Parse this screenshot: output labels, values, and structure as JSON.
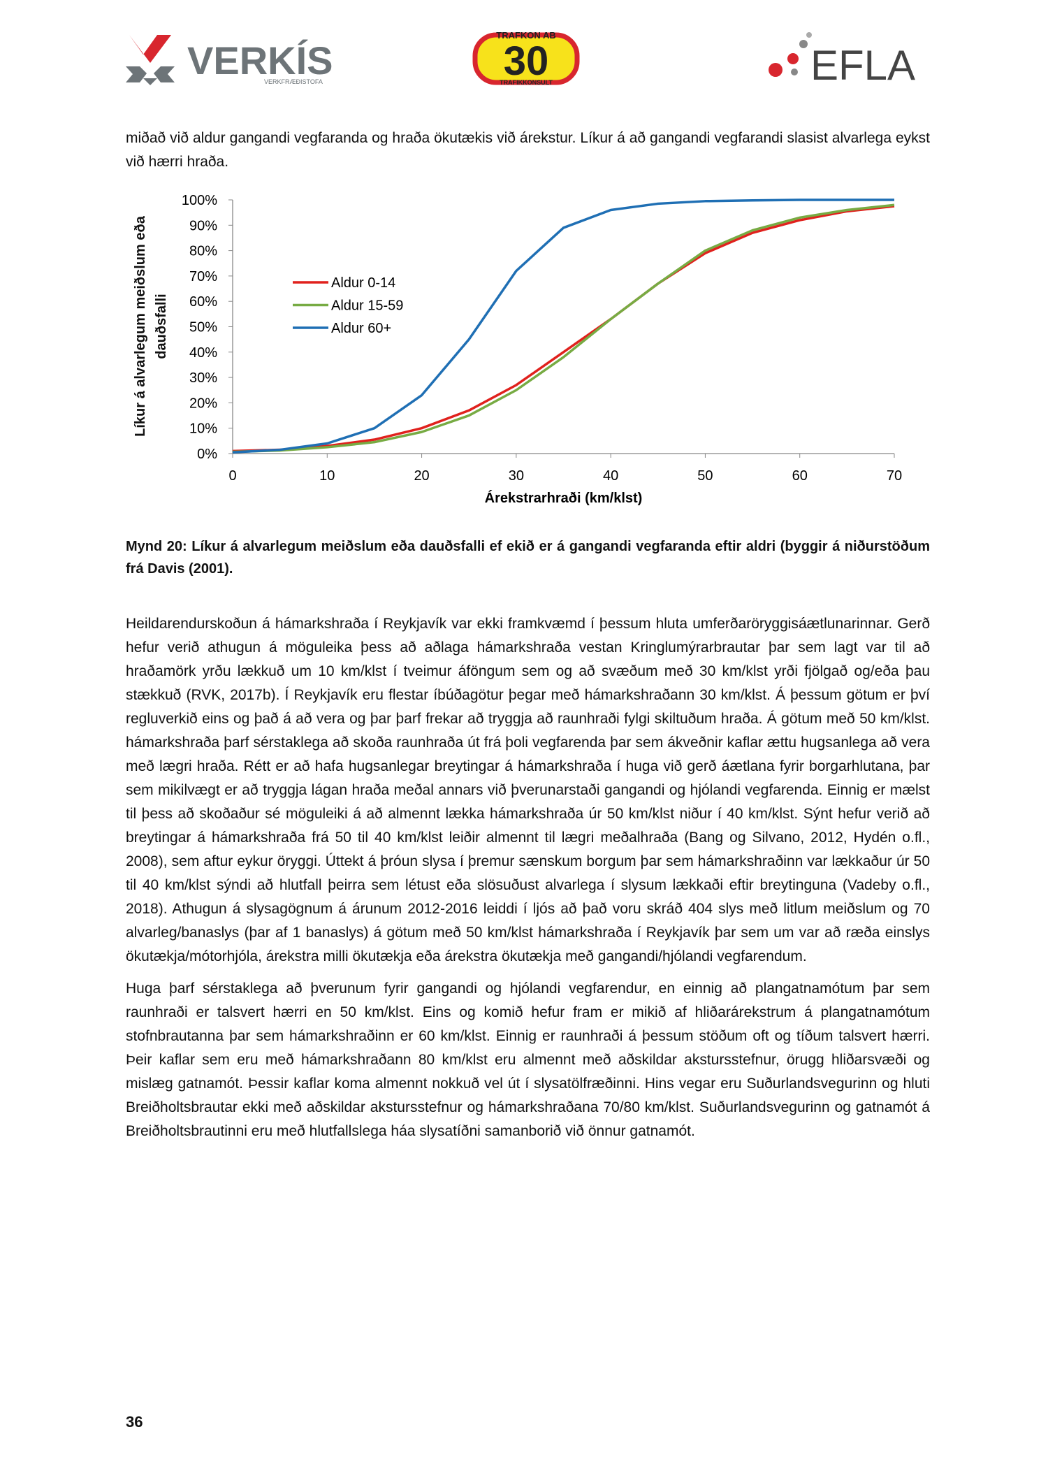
{
  "header": {
    "verkis": "VERKÍS",
    "verkis_sub": "VERKFRÆÐISTOFA",
    "trafkon_top": "TRAFKON AB",
    "trafkon_num": "30",
    "trafkon_bottom": "TRAFIKKONSULT",
    "efla": "EFLA"
  },
  "intro": "miðað við aldur gangandi vegfaranda og hraða ökutækis við árekstur. Líkur á að gangandi vegfarandi slasist alvarlega eykst við hærri hraða.",
  "chart_data": {
    "type": "line",
    "x_label": "Árekstrarhraði (km/klst)",
    "y_label": "Líkur á alvarlegum meiðslum eða dauðsfalli",
    "x": [
      0,
      5,
      10,
      15,
      20,
      25,
      30,
      35,
      40,
      45,
      50,
      55,
      60,
      65,
      70
    ],
    "series": [
      {
        "name": "Aldur 0-14",
        "color": "#e0211d",
        "values": [
          1,
          1.5,
          3,
          5.5,
          10,
          17,
          27,
          40,
          53,
          67,
          79,
          87,
          92,
          95.5,
          97.5
        ]
      },
      {
        "name": "Aldur 15-59",
        "color": "#77ab43",
        "values": [
          0.7,
          1.2,
          2.5,
          4.5,
          8.5,
          15,
          25,
          38,
          53,
          67,
          80,
          88,
          93,
          96,
          98
        ]
      },
      {
        "name": "Aldur 60+",
        "color": "#1f6fb4",
        "values": [
          0.5,
          1.5,
          4,
          10,
          23,
          45,
          72,
          89,
          96,
          98.5,
          99.5,
          99.8,
          100,
          100,
          100
        ]
      }
    ],
    "xlim": [
      0,
      70
    ],
    "xticks": [
      0,
      10,
      20,
      30,
      40,
      50,
      60,
      70
    ],
    "ylim": [
      0,
      100
    ],
    "yticks": [
      {
        "value": 0,
        "label": "0%"
      },
      {
        "value": 10,
        "label": "10%"
      },
      {
        "value": 20,
        "label": "20%"
      },
      {
        "value": 30,
        "label": "30%"
      },
      {
        "value": 40,
        "label": "40%"
      },
      {
        "value": 50,
        "label": "50%"
      },
      {
        "value": 60,
        "label": "60%"
      },
      {
        "value": 70,
        "label": "70%"
      },
      {
        "value": 80,
        "label": "80%"
      },
      {
        "value": 90,
        "label": "90%"
      },
      {
        "value": 100,
        "label": "100%"
      }
    ],
    "grid": false
  },
  "caption": "Mynd 20: Líkur á alvarlegum meiðslum eða dauðsfalli ef ekið er á gangandi vegfaranda eftir aldri (byggir á niðurstöðum frá Davis (2001).",
  "paragraphs": [
    "Heildarendurskoðun á hámarkshraða í Reykjavík var ekki framkvæmd í þessum hluta umferðaröryggisáætlunarinnar. Gerð hefur verið athugun á möguleika þess að aðlaga hámarkshraða vestan Kringlumýrarbrautar þar sem lagt var til að hraðamörk yrðu lækkuð um 10 km/klst í tveimur áföngum sem og að svæðum með 30 km/klst yrði fjölgað og/eða þau stækkuð (RVK, 2017b). Í Reykjavík eru flestar íbúðagötur þegar með hámarkshraðann 30 km/klst. Á þessum götum er því regluverkið eins og það á að vera og þar þarf frekar að tryggja að raunhraði fylgi skiltuðum hraða. Á götum með 50 km/klst. hámarkshraða þarf sérstaklega að skoða raunhraða út frá þoli vegfarenda þar sem ákveðnir kaflar ættu hugsanlega að vera með lægri hraða. Rétt er að hafa hugsanlegar breytingar á hámarkshraða í huga við gerð áætlana fyrir borgarhlutana, þar sem mikilvægt er að tryggja lágan hraða meðal annars við þverunarstaði gangandi og hjólandi vegfarenda. Einnig er mælst til þess að skoðaður sé möguleiki á að almennt lækka hámarkshraða úr 50 km/klst niður í 40 km/klst. Sýnt hefur verið að breytingar á hámarkshraða frá 50 til 40 km/klst leiðir almennt til lægri meðalhraða (Bang og Silvano, 2012, Hydén o.fl., 2008), sem aftur eykur öryggi. Úttekt á þróun slysa í þremur sænskum borgum þar sem hámarkshraðinn var lækkaður úr 50 til 40 km/klst sýndi að hlutfall þeirra sem létust eða slösuðust alvarlega í slysum lækkaði eftir breytinguna (Vadeby o.fl., 2018). Athugun á slysagögnum á árunum 2012-2016 leiddi í ljós að það voru skráð 404 slys með litlum meiðslum og 70 alvarleg/banaslys (þar af 1 banaslys) á götum með 50 km/klst hámarkshraða í Reykjavík þar sem um var að ræða einslys ökutækja/mótorhjóla, árekstra milli ökutækja eða árekstra ökutækja með gangandi/hjólandi vegfarendum.",
    "Huga þarf sérstaklega að þverunum fyrir gangandi og hjólandi vegfarendur, en einnig að plangatnamótum þar sem raunhraði er talsvert hærri en 50 km/klst. Eins og komið hefur fram er mikið af hliðarárekstrum á plangatnamótum stofnbrautanna þar sem hámarkshraðinn er 60 km/klst. Einnig er raunhraði á þessum stöðum oft og tíðum talsvert hærri. Þeir kaflar sem eru með hámarkshraðann 80 km/klst eru almennt með aðskildar akstursstefnur, örugg hliðarsvæði og mislæg gatnamót. Þessir kaflar koma almennt nokkuð vel út í slysatölfræðinni. Hins vegar eru Suðurlandsvegurinn og hluti Breiðholtsbrautar ekki með aðskildar akstursstefnur og hámarkshraðana 70/80 km/klst. Suðurlandsvegurinn og gatnamót á Breiðholtsbrautinni eru með hlutfallslega háa slysatíðni samanborið við önnur gatnamót."
  ],
  "page_number": "36"
}
